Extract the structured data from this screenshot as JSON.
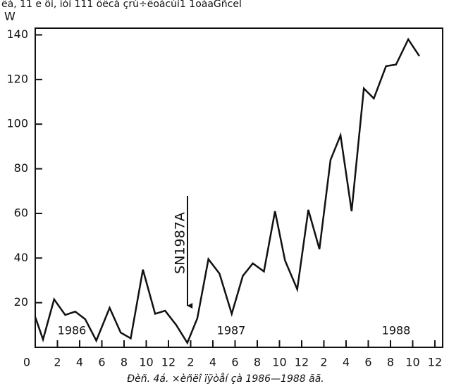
{
  "chart_data": {
    "type": "line",
    "top_text": "ëà, 11 e ôí, ìòí 111 öëcà çrù÷ëoàcùí1 1oàaGñcel",
    "y_label": "W",
    "caption": "Ðèñ. 4á. ×èñëî ïÿòåí çà 1986—1988 ãã.",
    "annotation": "SN1987A",
    "year_labels": [
      "1986",
      "1987",
      "1988"
    ],
    "x": [
      0,
      0.7,
      1.7,
      2.7,
      3.6,
      4.5,
      5.5,
      6.7,
      7.7,
      8.6,
      9.7,
      10.8,
      11.7,
      12.7,
      13.7,
      14.6,
      15.6,
      16.6,
      17.7,
      18.7,
      19.6,
      20.6,
      21.6,
      22.5,
      23.6,
      24.6,
      25.6,
      26.6,
      27.5,
      28.5,
      29.6,
      30.5,
      31.6,
      32.5,
      33.6,
      34.6
    ],
    "series": [
      {
        "color": "#111111",
        "values": [
          13.6,
          3.5,
          21.5,
          14.5,
          16,
          12.6,
          3,
          17.7,
          6.6,
          4,
          34.8,
          15,
          16.4,
          10,
          2,
          13,
          39.5,
          33,
          15,
          32,
          37.6,
          34,
          61,
          38.9,
          26,
          61.6,
          44,
          84,
          95,
          61,
          116,
          111.5,
          126,
          126.7,
          138,
          130.5
        ]
      }
    ],
    "xlim": [
      0,
      36.7
    ],
    "ylim": [
      0,
      143
    ],
    "xticks": [
      0,
      2,
      4,
      6,
      8,
      10,
      12,
      {
        "value": 14,
        "label": "2"
      },
      {
        "value": 16,
        "label": "4"
      },
      {
        "value": 18,
        "label": "6"
      },
      {
        "value": 20,
        "label": "8"
      },
      {
        "value": 22,
        "label": "10"
      },
      {
        "value": 24,
        "label": "12"
      },
      {
        "value": 26,
        "label": "2"
      },
      {
        "value": 28,
        "label": "4"
      },
      {
        "value": 30,
        "label": "6"
      },
      {
        "value": 32,
        "label": "8"
      },
      {
        "value": 34,
        "label": "10"
      },
      {
        "value": 36,
        "label": "12"
      }
    ],
    "yticks": [
      20,
      40,
      60,
      80,
      100,
      120,
      140
    ]
  }
}
